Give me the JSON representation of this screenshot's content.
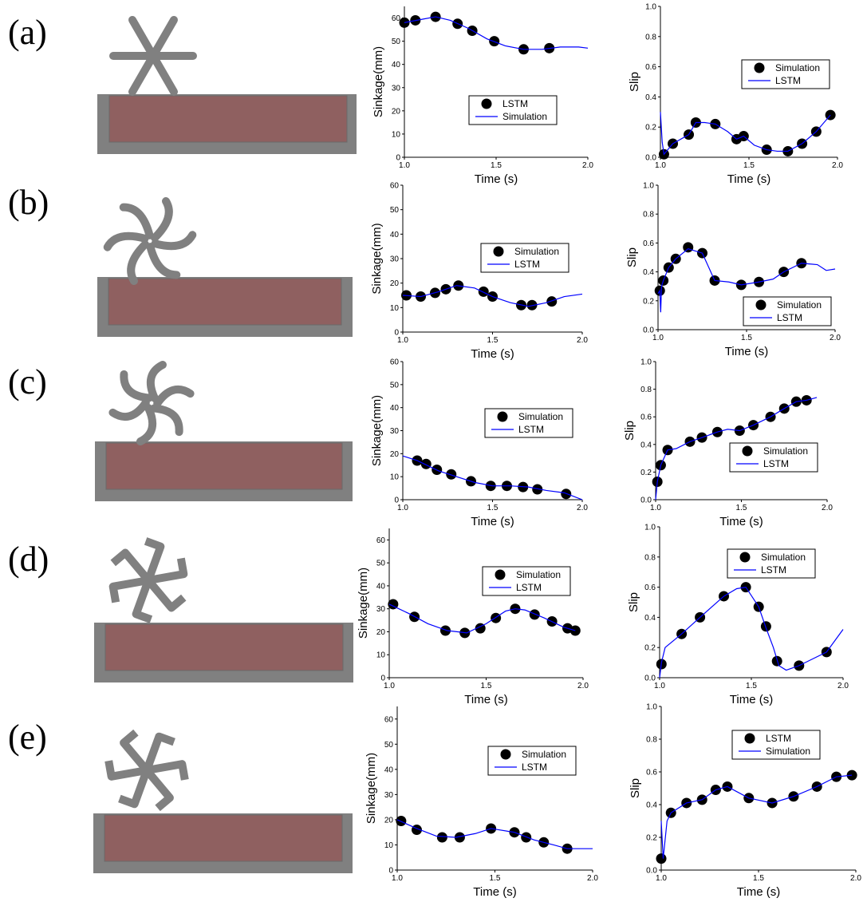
{
  "panel_labels": [
    "(a)",
    "(b)",
    "(c)",
    "(d)",
    "(e)"
  ],
  "chart_data": [
    {
      "type": "line",
      "xlabel": "Time (s)",
      "ylabel": "Sinkage(mm)",
      "xlim": [
        1,
        2
      ],
      "ylim": [
        0,
        65
      ],
      "xticks": [
        {
          "value": 1,
          "label": "1.0"
        },
        1.5,
        {
          "value": 2,
          "label": "2.0"
        }
      ],
      "yticks": [
        0,
        10,
        20,
        30,
        40,
        50,
        60
      ],
      "series": [
        {
          "name": "LSTM",
          "color": "#000000",
          "mode": "markers",
          "x": [
            1.0,
            1.06,
            1.17,
            1.29,
            1.37,
            1.49,
            1.65,
            1.79
          ],
          "values": [
            58,
            59,
            60.5,
            57.5,
            54.5,
            50,
            46.5,
            47
          ]
        },
        {
          "name": "Simulation",
          "color": "#0000ff",
          "mode": "lines",
          "x": [
            1.0,
            1.1,
            1.17,
            1.25,
            1.35,
            1.45,
            1.55,
            1.65,
            1.75,
            1.85,
            1.95,
            2.0
          ],
          "values": [
            58,
            59.5,
            60.5,
            59,
            55.5,
            51,
            48,
            46.5,
            46.5,
            47.5,
            47.5,
            47
          ]
        }
      ]
    },
    {
      "type": "line",
      "xlabel": "Time (s)",
      "ylabel": "Slip",
      "xlim": [
        1,
        2
      ],
      "ylim": [
        0,
        1
      ],
      "xticks": [
        {
          "value": 1,
          "label": "1.0"
        },
        1.5,
        {
          "value": 2,
          "label": "2.0"
        }
      ],
      "yticks": [
        {
          "value": 0,
          "label": "0.0"
        },
        0.2,
        0.4,
        0.6,
        0.8,
        {
          "value": 1,
          "label": "1.0"
        }
      ],
      "series": [
        {
          "name": "Simulation",
          "color": "#000000",
          "mode": "markers",
          "x": [
            1.02,
            1.07,
            1.16,
            1.2,
            1.31,
            1.43,
            1.47,
            1.6,
            1.72,
            1.8,
            1.88,
            1.96
          ],
          "values": [
            0.02,
            0.09,
            0.15,
            0.23,
            0.22,
            0.12,
            0.14,
            0.05,
            0.04,
            0.09,
            0.17,
            0.28
          ]
        },
        {
          "name": "LSTM",
          "color": "#0000ff",
          "mode": "lines",
          "x": [
            1.0,
            1.01,
            1.02,
            1.07,
            1.16,
            1.2,
            1.25,
            1.31,
            1.38,
            1.43,
            1.47,
            1.53,
            1.6,
            1.66,
            1.72,
            1.8,
            1.88,
            1.96
          ],
          "values": [
            0.3,
            0.1,
            0.02,
            0.09,
            0.15,
            0.23,
            0.23,
            0.22,
            0.17,
            0.12,
            0.14,
            0.08,
            0.05,
            0.04,
            0.04,
            0.09,
            0.17,
            0.28
          ]
        }
      ]
    },
    {
      "type": "line",
      "xlabel": "Time (s)",
      "ylabel": "Sinkage(mm)",
      "xlim": [
        1,
        2
      ],
      "ylim": [
        0,
        60
      ],
      "xticks": [
        {
          "value": 1,
          "label": "1.0"
        },
        1.5,
        {
          "value": 2,
          "label": "2.0"
        }
      ],
      "yticks": [
        0,
        10,
        20,
        30,
        40,
        50,
        60
      ],
      "series": [
        {
          "name": "Simulation",
          "color": "#000000",
          "mode": "markers",
          "x": [
            1.02,
            1.1,
            1.18,
            1.24,
            1.31,
            1.45,
            1.5,
            1.66,
            1.72,
            1.83
          ],
          "values": [
            15,
            14.5,
            16,
            17.5,
            19,
            16.5,
            14.5,
            11,
            11,
            12.5
          ]
        },
        {
          "name": "LSTM",
          "color": "#0000ff",
          "mode": "lines",
          "x": [
            1.0,
            1.1,
            1.2,
            1.3,
            1.4,
            1.5,
            1.6,
            1.7,
            1.8,
            1.9,
            2.0
          ],
          "values": [
            15,
            14.5,
            16.5,
            19,
            18,
            14.5,
            12,
            10.5,
            12,
            14.5,
            15.5
          ]
        }
      ]
    },
    {
      "type": "line",
      "xlabel": "Time (s)",
      "ylabel": "Slip",
      "xlim": [
        1,
        2
      ],
      "ylim": [
        0,
        1
      ],
      "xticks": [
        {
          "value": 1,
          "label": "1.0"
        },
        1.5,
        {
          "value": 2,
          "label": "2.0"
        }
      ],
      "yticks": [
        {
          "value": 0,
          "label": "0.0"
        },
        0.2,
        0.4,
        0.6,
        0.8,
        {
          "value": 1,
          "label": "1.0"
        }
      ],
      "series": [
        {
          "name": "Simulation",
          "color": "#000000",
          "mode": "markers",
          "x": [
            1.01,
            1.03,
            1.06,
            1.1,
            1.17,
            1.25,
            1.32,
            1.47,
            1.57,
            1.71,
            1.81
          ],
          "values": [
            0.27,
            0.34,
            0.43,
            0.49,
            0.57,
            0.53,
            0.34,
            0.31,
            0.33,
            0.4,
            0.46
          ]
        },
        {
          "name": "LSTM",
          "color": "#0000ff",
          "mode": "lines",
          "x": [
            1.0,
            1.01,
            1.015,
            1.02,
            1.03,
            1.06,
            1.1,
            1.17,
            1.25,
            1.32,
            1.4,
            1.47,
            1.57,
            1.65,
            1.71,
            1.81,
            1.9,
            1.95,
            2.0
          ],
          "values": [
            0.25,
            0.27,
            0.12,
            0.3,
            0.34,
            0.43,
            0.49,
            0.56,
            0.53,
            0.34,
            0.33,
            0.31,
            0.33,
            0.35,
            0.4,
            0.46,
            0.45,
            0.41,
            0.42
          ]
        }
      ]
    },
    {
      "type": "line",
      "xlabel": "Time (s)",
      "ylabel": "Sinkage(mm)",
      "xlim": [
        1,
        2
      ],
      "ylim": [
        0,
        60
      ],
      "xticks": [
        {
          "value": 1,
          "label": "1.0"
        },
        1.5,
        {
          "value": 2,
          "label": "2.0"
        }
      ],
      "yticks": [
        0,
        10,
        20,
        30,
        40,
        50,
        60
      ],
      "series": [
        {
          "name": "Simulation",
          "color": "#000000",
          "mode": "markers",
          "x": [
            1.08,
            1.13,
            1.19,
            1.27,
            1.38,
            1.49,
            1.58,
            1.67,
            1.75,
            1.91
          ],
          "values": [
            17,
            15.5,
            13,
            11,
            8,
            6,
            6,
            5.5,
            4.5,
            2.5
          ]
        },
        {
          "name": "LSTM",
          "color": "#0000ff",
          "mode": "lines",
          "x": [
            1.0,
            1.08,
            1.2,
            1.3,
            1.4,
            1.5,
            1.6,
            1.7,
            1.8,
            1.9,
            1.95,
            2.0
          ],
          "values": [
            19,
            17,
            12.5,
            10,
            7.5,
            6,
            6,
            5.5,
            4,
            3,
            1.5,
            0
          ]
        }
      ]
    },
    {
      "type": "line",
      "xlabel": "Time (s)",
      "ylabel": "Slip",
      "xlim": [
        1,
        2
      ],
      "ylim": [
        0,
        1
      ],
      "xticks": [
        {
          "value": 1,
          "label": "1.0"
        },
        1.5,
        {
          "value": 2,
          "label": "2.0"
        }
      ],
      "yticks": [
        {
          "value": 0,
          "label": "0.0"
        },
        0.2,
        0.4,
        0.6,
        0.8,
        {
          "value": 1,
          "label": "1.0"
        }
      ],
      "series": [
        {
          "name": "Simulation",
          "color": "#000000",
          "mode": "markers",
          "x": [
            1.01,
            1.03,
            1.07,
            1.2,
            1.27,
            1.36,
            1.49,
            1.57,
            1.67,
            1.75,
            1.82,
            1.88
          ],
          "values": [
            0.13,
            0.25,
            0.36,
            0.42,
            0.45,
            0.49,
            0.5,
            0.54,
            0.6,
            0.66,
            0.71,
            0.72
          ]
        },
        {
          "name": "LSTM",
          "color": "#0000ff",
          "mode": "lines",
          "x": [
            1.0,
            1.01,
            1.03,
            1.07,
            1.12,
            1.2,
            1.27,
            1.36,
            1.42,
            1.49,
            1.57,
            1.67,
            1.75,
            1.82,
            1.88,
            1.94
          ],
          "values": [
            0.0,
            0.13,
            0.25,
            0.36,
            0.37,
            0.42,
            0.45,
            0.49,
            0.51,
            0.5,
            0.54,
            0.6,
            0.66,
            0.71,
            0.72,
            0.74
          ]
        }
      ]
    },
    {
      "type": "line",
      "xlabel": "Time (s)",
      "ylabel": "Sinkage(mm)",
      "xlim": [
        1,
        2
      ],
      "ylim": [
        0,
        65
      ],
      "xticks": [
        {
          "value": 1,
          "label": "1.0"
        },
        1.5,
        {
          "value": 2,
          "label": "2.0"
        }
      ],
      "yticks": [
        0,
        10,
        20,
        30,
        40,
        50,
        60
      ],
      "series": [
        {
          "name": "Simulation",
          "color": "#000000",
          "mode": "markers",
          "x": [
            1.02,
            1.13,
            1.29,
            1.39,
            1.47,
            1.55,
            1.65,
            1.75,
            1.84,
            1.92,
            1.96
          ],
          "values": [
            32,
            26.5,
            20.5,
            19.5,
            21.5,
            26,
            30,
            27.5,
            24.5,
            21.5,
            20.5
          ]
        },
        {
          "name": "LSTM",
          "color": "#0000ff",
          "mode": "lines",
          "x": [
            1.0,
            1.1,
            1.2,
            1.3,
            1.4,
            1.5,
            1.6,
            1.65,
            1.7,
            1.8,
            1.9,
            1.96
          ],
          "values": [
            32,
            28,
            23.5,
            20.5,
            19.5,
            23.5,
            29,
            30,
            29.5,
            26,
            22,
            20.5
          ]
        }
      ]
    },
    {
      "type": "line",
      "xlabel": "Time (s)",
      "ylabel": "Slip",
      "xlim": [
        1,
        2
      ],
      "ylim": [
        0,
        1
      ],
      "xticks": [
        {
          "value": 1,
          "label": "1.0"
        },
        1.5,
        {
          "value": 2,
          "label": "2.0"
        }
      ],
      "yticks": [
        {
          "value": 0,
          "label": "0.0"
        },
        0.2,
        0.4,
        0.6,
        0.8,
        {
          "value": 1,
          "label": "1.0"
        }
      ],
      "series": [
        {
          "name": "Simulation",
          "color": "#000000",
          "mode": "markers",
          "x": [
            1.01,
            1.12,
            1.22,
            1.35,
            1.47,
            1.54,
            1.58,
            1.64,
            1.76,
            1.91
          ],
          "values": [
            0.09,
            0.29,
            0.4,
            0.54,
            0.6,
            0.47,
            0.34,
            0.11,
            0.08,
            0.17
          ]
        },
        {
          "name": "LSTM",
          "color": "#0000ff",
          "mode": "lines",
          "x": [
            1.0,
            1.01,
            1.03,
            1.12,
            1.22,
            1.35,
            1.42,
            1.47,
            1.54,
            1.58,
            1.62,
            1.65,
            1.69,
            1.76,
            1.91,
            2.0
          ],
          "values": [
            0.0,
            0.1,
            0.2,
            0.29,
            0.4,
            0.54,
            0.59,
            0.6,
            0.47,
            0.33,
            0.2,
            0.08,
            0.05,
            0.08,
            0.17,
            0.32
          ]
        }
      ]
    },
    {
      "type": "line",
      "xlabel": "Time (s)",
      "ylabel": "Sinkage(mm)",
      "xlim": [
        1,
        2
      ],
      "ylim": [
        0,
        65
      ],
      "xticks": [
        {
          "value": 1,
          "label": "1.0"
        },
        1.5,
        {
          "value": 2,
          "label": "2.0"
        }
      ],
      "yticks": [
        0,
        10,
        20,
        30,
        40,
        50,
        60
      ],
      "series": [
        {
          "name": "Simulation",
          "color": "#000000",
          "mode": "markers",
          "x": [
            1.02,
            1.1,
            1.23,
            1.32,
            1.48,
            1.6,
            1.66,
            1.75,
            1.87
          ],
          "values": [
            19.5,
            16,
            13,
            13,
            16.5,
            15,
            13,
            11,
            8.5
          ]
        },
        {
          "name": "LSTM",
          "color": "#0000ff",
          "mode": "lines",
          "x": [
            1.0,
            1.1,
            1.2,
            1.3,
            1.4,
            1.48,
            1.6,
            1.7,
            1.8,
            1.87,
            1.95,
            2.0
          ],
          "values": [
            20,
            16.5,
            13.5,
            13,
            14.5,
            16.5,
            15,
            12,
            10,
            8.5,
            8.5,
            8.5
          ]
        }
      ]
    },
    {
      "type": "line",
      "xlabel": "Time (s)",
      "ylabel": "Slip",
      "xlim": [
        1,
        2
      ],
      "ylim": [
        0,
        1
      ],
      "xticks": [
        {
          "value": 1,
          "label": "1.0"
        },
        1.5,
        {
          "value": 2,
          "label": "2.0"
        }
      ],
      "yticks": [
        {
          "value": 0,
          "label": "0.0"
        },
        0.2,
        0.4,
        0.6,
        0.8,
        {
          "value": 1,
          "label": "1.0"
        }
      ],
      "series": [
        {
          "name": "LSTM",
          "color": "#000000",
          "mode": "markers",
          "x": [
            1.0,
            1.05,
            1.13,
            1.21,
            1.28,
            1.34,
            1.45,
            1.57,
            1.68,
            1.8,
            1.9,
            1.98
          ],
          "values": [
            0.07,
            0.35,
            0.41,
            0.43,
            0.49,
            0.51,
            0.44,
            0.41,
            0.45,
            0.51,
            0.57,
            0.58
          ]
        },
        {
          "name": "Simulation",
          "color": "#0000ff",
          "mode": "lines",
          "x": [
            1.0,
            1.01,
            1.03,
            1.05,
            1.13,
            1.21,
            1.28,
            1.34,
            1.45,
            1.57,
            1.68,
            1.8,
            1.9,
            1.98
          ],
          "values": [
            0.3,
            0.07,
            0.3,
            0.35,
            0.41,
            0.43,
            0.49,
            0.51,
            0.44,
            0.41,
            0.45,
            0.51,
            0.57,
            0.58
          ]
        }
      ]
    }
  ]
}
